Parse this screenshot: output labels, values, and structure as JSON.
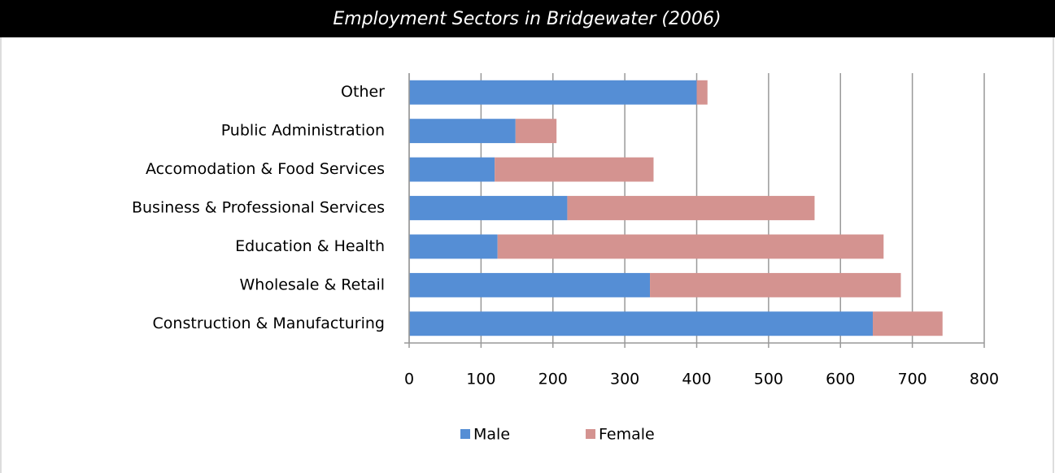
{
  "chart_data": {
    "type": "stacked-barh",
    "title": "Employment Sectors in Bridgewater (2006)",
    "categories": [
      "Construction & Manufacturing",
      "Wholesale & Retail",
      "Education & Health",
      "Business & Professional Services",
      "Accomodation & Food Services",
      "Public Administration",
      "Other"
    ],
    "series": [
      {
        "name": "Male",
        "color": "#558ed5",
        "values": [
          645,
          335,
          123,
          220,
          119,
          148,
          400
        ]
      },
      {
        "name": "Female",
        "color": "#d49390",
        "values": [
          97,
          349,
          537,
          344,
          221,
          57,
          15
        ]
      }
    ],
    "xlim": [
      0,
      800
    ],
    "xticks": [
      0,
      100,
      200,
      300,
      400,
      500,
      600,
      700,
      800
    ],
    "grid": true,
    "legend": "bottom"
  }
}
